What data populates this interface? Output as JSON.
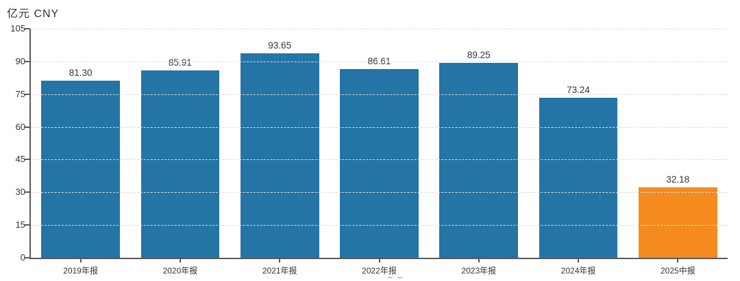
{
  "axis_title": "亿元 CNY",
  "chart_data": {
    "type": "bar",
    "title": "亿元 CNY",
    "xlabel": "",
    "ylabel": "亿元 CNY",
    "categories": [
      "2019年报",
      "2020年报",
      "2021年报",
      "2022年报",
      "2023年报",
      "2024年报",
      "2025中报"
    ],
    "values": [
      81.3,
      85.91,
      93.65,
      86.61,
      89.25,
      73.24,
      32.18
    ],
    "value_labels": [
      "81.30",
      "85.91",
      "93.65",
      "86.61",
      "89.25",
      "73.24",
      "32.18"
    ],
    "ylim": [
      0,
      105
    ],
    "y_ticks": [
      0,
      15,
      30,
      45,
      60,
      75,
      90,
      105
    ],
    "grid": "horizontal dashed",
    "legend": "none",
    "bar_colors": [
      "#2474a5",
      "#2474a5",
      "#2474a5",
      "#2474a5",
      "#2474a5",
      "#2474a5",
      "#f58a1f"
    ]
  },
  "colors": {
    "bar_blue": "#2474a5",
    "bar_orange": "#f58a1f",
    "axis_line": "#595959",
    "grid_line": "#dcdcdc",
    "text": "#333333",
    "background": "#ffffff"
  }
}
